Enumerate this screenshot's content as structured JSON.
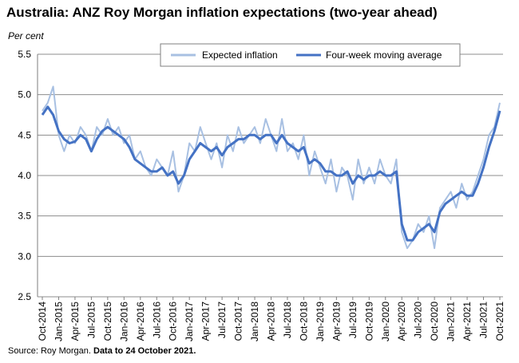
{
  "header": {
    "title": "Australia: ANZ Roy Morgan inflation expectations (two-year ahead)",
    "y_unit_label": "Per cent"
  },
  "footer": {
    "source_prefix": "Source: Roy Morgan. ",
    "source_bold": "Data to 24 October 2021."
  },
  "colors": {
    "expected": "#a8c0e2",
    "average": "#4472c4",
    "grid": "#8c8c8c",
    "axis": "#7f7f7f"
  },
  "chart_data": {
    "type": "line",
    "title": "Australia: ANZ Roy Morgan inflation expectations (two-year ahead)",
    "ylabel": "Per cent",
    "ylim": [
      2.5,
      5.5
    ],
    "yticks": [
      "2.5",
      "3.0",
      "3.5",
      "4.0",
      "4.5",
      "5.0",
      "5.5"
    ],
    "grid": true,
    "legend_position": "top-right",
    "x_range": [
      "2014-10",
      "2021-10"
    ],
    "x_ticks": [
      "Oct-2014",
      "Jan-2015",
      "Apr-2015",
      "Jul-2015",
      "Oct-2015",
      "Jan-2016",
      "Apr-2016",
      "Jul-2016",
      "Oct-2016",
      "Jan-2017",
      "Apr-2017",
      "Jul-2017",
      "Oct-2017",
      "Jan-2018",
      "Apr-2018",
      "Jul-2018",
      "Oct-2018",
      "Jan-2019",
      "Apr-2019",
      "Jul-2019",
      "Oct-2019",
      "Jan-2020",
      "Apr-2020",
      "Jul-2020",
      "Oct-2020",
      "Jan-2021",
      "Apr-2021",
      "Jul-2021",
      "Oct-2021"
    ],
    "series": [
      {
        "name": "Expected inflation",
        "key": "expected",
        "x": [
          "2014-10",
          "2014-11",
          "2014-12",
          "2015-01",
          "2015-02",
          "2015-03",
          "2015-04",
          "2015-05",
          "2015-06",
          "2015-07",
          "2015-08",
          "2015-09",
          "2015-10",
          "2015-11",
          "2015-12",
          "2016-01",
          "2016-02",
          "2016-03",
          "2016-04",
          "2016-05",
          "2016-06",
          "2016-07",
          "2016-08",
          "2016-09",
          "2016-10",
          "2016-11",
          "2016-12",
          "2017-01",
          "2017-02",
          "2017-03",
          "2017-04",
          "2017-05",
          "2017-06",
          "2017-07",
          "2017-08",
          "2017-09",
          "2017-10",
          "2017-11",
          "2017-12",
          "2018-01",
          "2018-02",
          "2018-03",
          "2018-04",
          "2018-05",
          "2018-06",
          "2018-07",
          "2018-08",
          "2018-09",
          "2018-10",
          "2018-11",
          "2018-12",
          "2019-01",
          "2019-02",
          "2019-03",
          "2019-04",
          "2019-05",
          "2019-06",
          "2019-07",
          "2019-08",
          "2019-09",
          "2019-10",
          "2019-11",
          "2019-12",
          "2020-01",
          "2020-02",
          "2020-03",
          "2020-04",
          "2020-05",
          "2020-06",
          "2020-07",
          "2020-08",
          "2020-09",
          "2020-10",
          "2020-11",
          "2020-12",
          "2021-01",
          "2021-02",
          "2021-03",
          "2021-04",
          "2021-05",
          "2021-06",
          "2021-07",
          "2021-08",
          "2021-09",
          "2021-10"
        ],
        "values": [
          4.8,
          4.9,
          5.1,
          4.5,
          4.3,
          4.5,
          4.4,
          4.6,
          4.5,
          4.3,
          4.6,
          4.5,
          4.7,
          4.5,
          4.6,
          4.4,
          4.5,
          4.2,
          4.3,
          4.1,
          4.0,
          4.2,
          4.1,
          4.0,
          4.3,
          3.8,
          4.0,
          4.4,
          4.3,
          4.6,
          4.4,
          4.2,
          4.4,
          4.1,
          4.5,
          4.3,
          4.6,
          4.4,
          4.5,
          4.6,
          4.4,
          4.7,
          4.5,
          4.3,
          4.7,
          4.3,
          4.4,
          4.2,
          4.5,
          4.0,
          4.3,
          4.1,
          3.9,
          4.2,
          3.8,
          4.1,
          4.0,
          3.7,
          4.2,
          3.9,
          4.1,
          3.9,
          4.2,
          4.0,
          3.9,
          4.2,
          3.3,
          3.1,
          3.2,
          3.4,
          3.3,
          3.5,
          3.1,
          3.6,
          3.7,
          3.8,
          3.6,
          3.9,
          3.7,
          3.8,
          4.0,
          4.2,
          4.5,
          4.6,
          4.9
        ]
      },
      {
        "name": "Four-week moving average",
        "key": "average",
        "x": [
          "2014-10",
          "2014-11",
          "2014-12",
          "2015-01",
          "2015-02",
          "2015-03",
          "2015-04",
          "2015-05",
          "2015-06",
          "2015-07",
          "2015-08",
          "2015-09",
          "2015-10",
          "2015-11",
          "2015-12",
          "2016-01",
          "2016-02",
          "2016-03",
          "2016-04",
          "2016-05",
          "2016-06",
          "2016-07",
          "2016-08",
          "2016-09",
          "2016-10",
          "2016-11",
          "2016-12",
          "2017-01",
          "2017-02",
          "2017-03",
          "2017-04",
          "2017-05",
          "2017-06",
          "2017-07",
          "2017-08",
          "2017-09",
          "2017-10",
          "2017-11",
          "2017-12",
          "2018-01",
          "2018-02",
          "2018-03",
          "2018-04",
          "2018-05",
          "2018-06",
          "2018-07",
          "2018-08",
          "2018-09",
          "2018-10",
          "2018-11",
          "2018-12",
          "2019-01",
          "2019-02",
          "2019-03",
          "2019-04",
          "2019-05",
          "2019-06",
          "2019-07",
          "2019-08",
          "2019-09",
          "2019-10",
          "2019-11",
          "2019-12",
          "2020-01",
          "2020-02",
          "2020-03",
          "2020-04",
          "2020-05",
          "2020-06",
          "2020-07",
          "2020-08",
          "2020-09",
          "2020-10",
          "2020-11",
          "2020-12",
          "2021-01",
          "2021-02",
          "2021-03",
          "2021-04",
          "2021-05",
          "2021-06",
          "2021-07",
          "2021-08",
          "2021-09",
          "2021-10"
        ],
        "values": [
          4.75,
          4.85,
          4.75,
          4.55,
          4.45,
          4.4,
          4.42,
          4.5,
          4.45,
          4.3,
          4.45,
          4.55,
          4.6,
          4.55,
          4.5,
          4.45,
          4.35,
          4.2,
          4.15,
          4.1,
          4.05,
          4.05,
          4.1,
          4.0,
          4.05,
          3.9,
          4.0,
          4.2,
          4.3,
          4.4,
          4.35,
          4.3,
          4.35,
          4.25,
          4.35,
          4.4,
          4.45,
          4.45,
          4.5,
          4.5,
          4.45,
          4.5,
          4.5,
          4.4,
          4.5,
          4.4,
          4.35,
          4.3,
          4.35,
          4.15,
          4.2,
          4.15,
          4.05,
          4.05,
          4.0,
          4.0,
          4.05,
          3.9,
          4.0,
          3.95,
          4.0,
          4.0,
          4.05,
          4.0,
          4.0,
          4.05,
          3.4,
          3.2,
          3.2,
          3.3,
          3.35,
          3.4,
          3.3,
          3.55,
          3.65,
          3.7,
          3.75,
          3.8,
          3.75,
          3.75,
          3.9,
          4.1,
          4.35,
          4.55,
          4.8
        ]
      }
    ]
  }
}
